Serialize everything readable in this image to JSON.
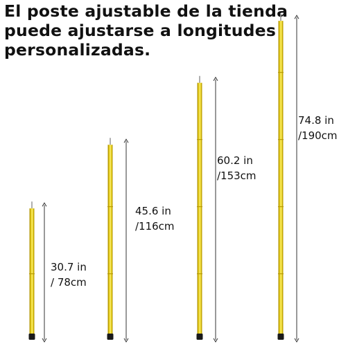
{
  "headline": "El poste ajustable de la tienda\npuede ajustarse a longitudes\npersonalizadas.",
  "poles": [
    {
      "length_in": "30.7 in",
      "length_cm": "/ 78cm",
      "length_cm_value": 78
    },
    {
      "length_in": "45.6 in",
      "length_cm": "/116cm",
      "length_cm_value": 116
    },
    {
      "length_in": "60.2 in",
      "length_cm": "/153cm",
      "length_cm_value": 153
    },
    {
      "length_in": "74.8 in",
      "length_cm": "/190cm",
      "length_cm_value": 190
    }
  ],
  "colors": {
    "pole": "#e8cf1c",
    "pole_highlight": "#f6e866",
    "pole_shadow": "#b89c08",
    "cap": "#1a1a1a",
    "tip": "#9a9a9a",
    "dimension_line": "#333333",
    "text": "#111111"
  }
}
